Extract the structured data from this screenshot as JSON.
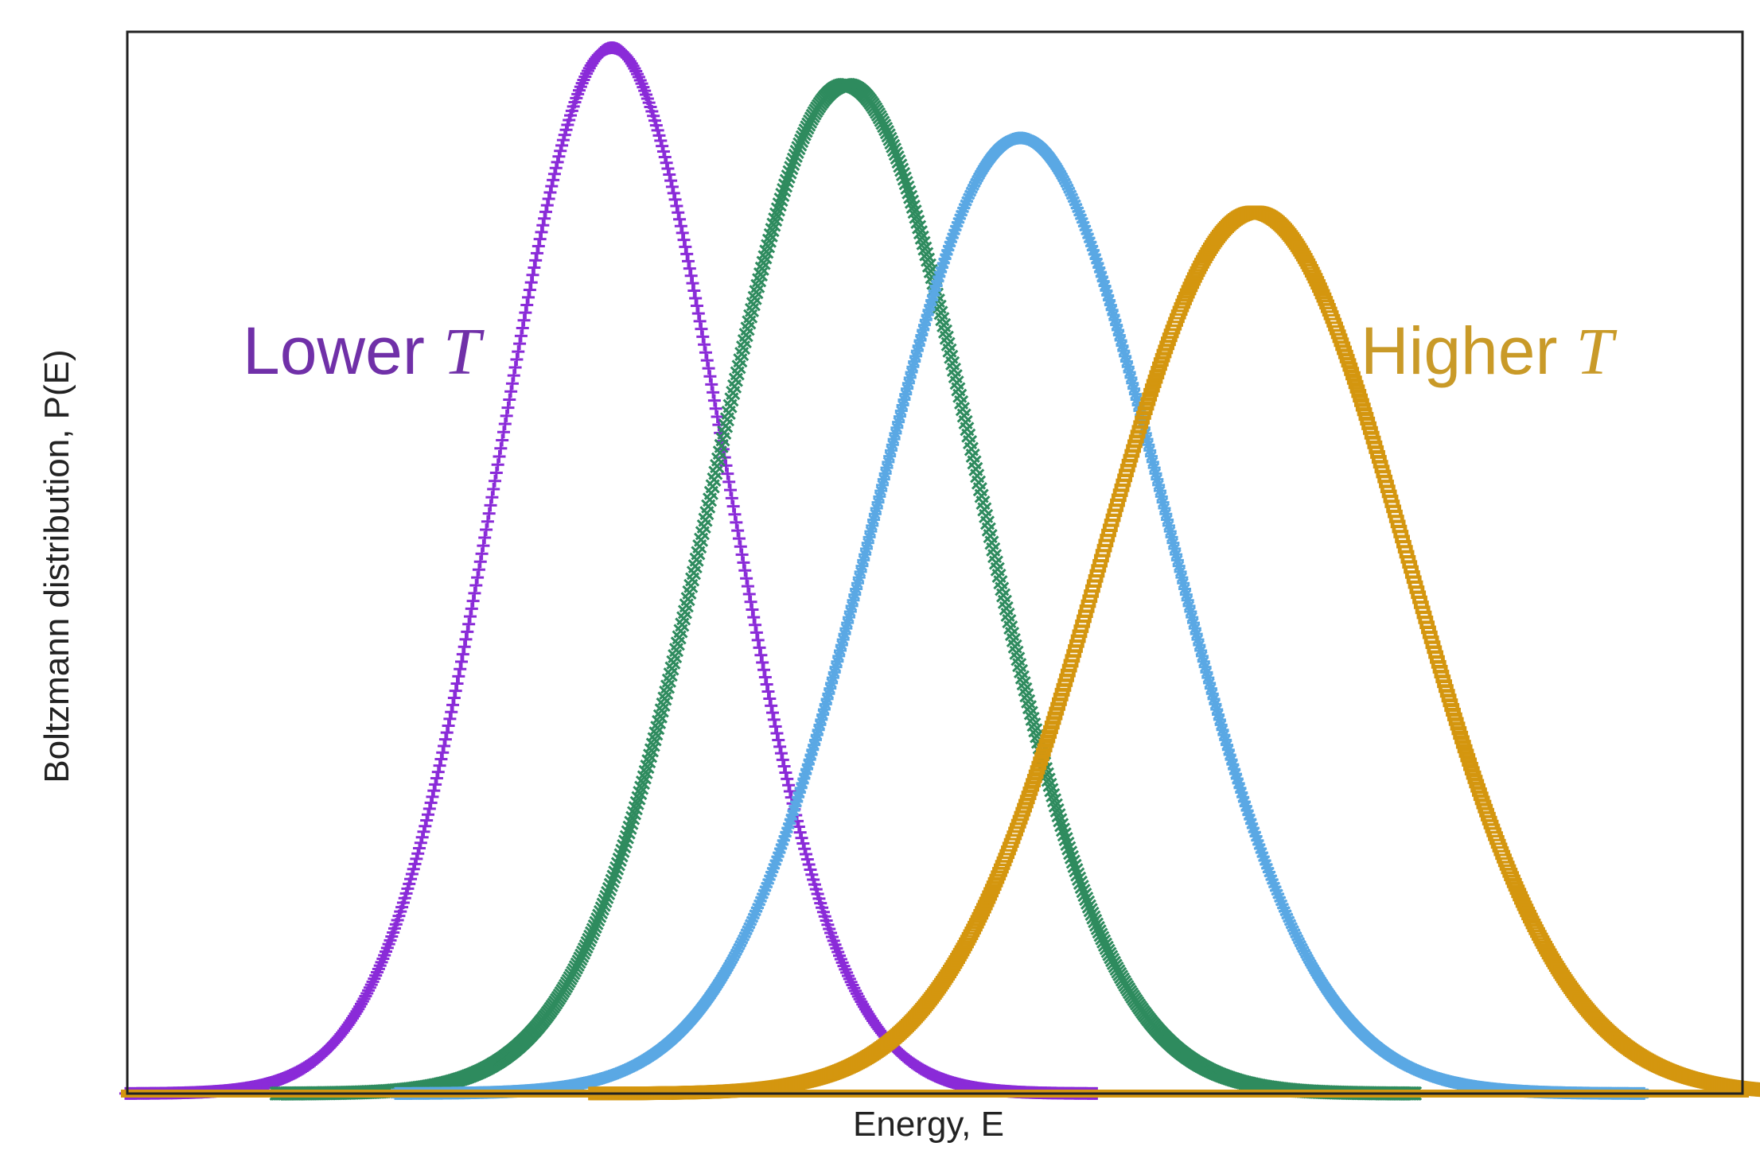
{
  "chart_data": {
    "type": "scatter",
    "xlabel": "Energy, E",
    "ylabel": "Boltzmann distribution, P(E)",
    "xlim": [
      0,
      100
    ],
    "ylim": [
      0,
      1.0
    ],
    "grid": false,
    "legend": "none",
    "series": [
      {
        "marker": "plus",
        "color": "#8A2BD8",
        "mean": 30,
        "sd": 7.0,
        "peak": 0.985
      },
      {
        "marker": "cross",
        "color": "#2E8B5E",
        "mean": 44.5,
        "sd": 8.2,
        "peak": 0.95
      },
      {
        "marker": "asterisk",
        "color": "#5AA8E4",
        "mean": 55.3,
        "sd": 9.0,
        "peak": 0.9
      },
      {
        "marker": "square",
        "color": "#D4960F",
        "mean": 69.8,
        "sd": 9.5,
        "peak": 0.83
      }
    ],
    "annotations": [
      {
        "text": "Lower ",
        "variable": "T",
        "color": "#7030A8",
        "anchor": "left"
      },
      {
        "text": "Higher ",
        "variable": "T",
        "color": "#C99A28",
        "anchor": "right"
      }
    ]
  }
}
